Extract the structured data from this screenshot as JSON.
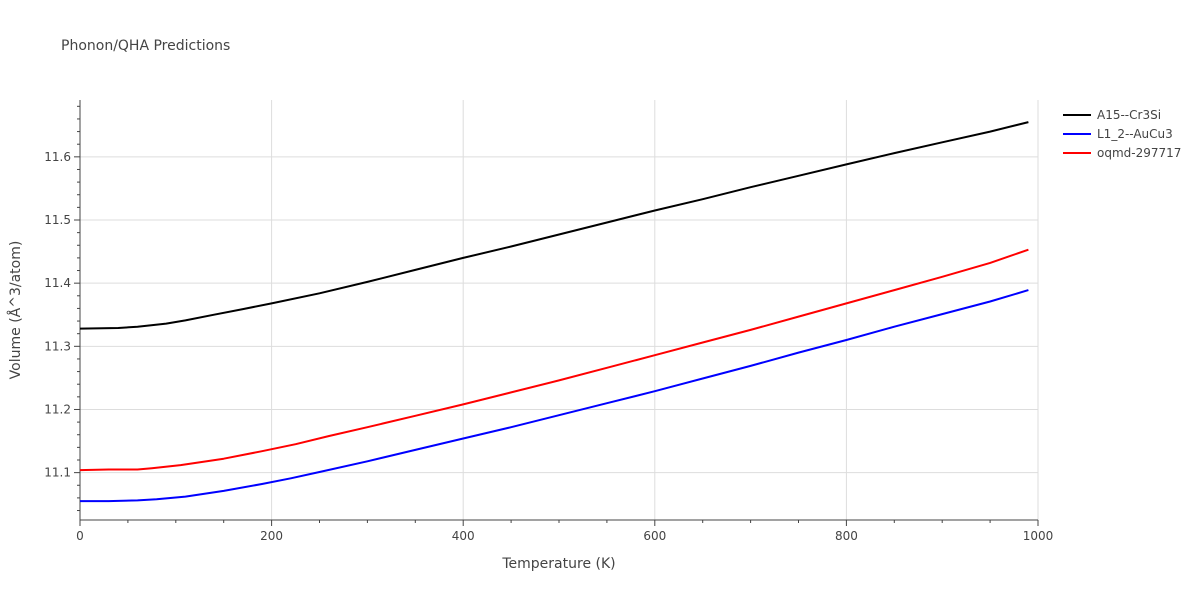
{
  "chart_data": {
    "type": "line",
    "title": "Phonon/QHA Predictions",
    "xlabel": "Temperature (K)",
    "ylabel": "Volume (Å^3/atom)",
    "xlim": [
      0,
      1000
    ],
    "ylim": [
      11.025,
      11.69
    ],
    "x_ticks": [
      0,
      200,
      400,
      600,
      800,
      1000
    ],
    "y_ticks": [
      11.1,
      11.2,
      11.3,
      11.4,
      11.5,
      11.6
    ],
    "x_tick_labels": [
      "0",
      "200",
      "400",
      "600",
      "800",
      "1000"
    ],
    "y_tick_labels": [
      "11.1",
      "11.2",
      "11.3",
      "11.4",
      "11.5",
      "11.6"
    ],
    "grid": true,
    "legend_position": "right",
    "series": [
      {
        "name": "A15--Cr3Si",
        "color": "#000000",
        "x": [
          0,
          40,
          60,
          90,
          110,
          140,
          170,
          200,
          250,
          300,
          350,
          400,
          450,
          500,
          550,
          600,
          650,
          700,
          750,
          800,
          850,
          900,
          950,
          990
        ],
        "y": [
          11.328,
          11.329,
          11.331,
          11.336,
          11.341,
          11.35,
          11.359,
          11.368,
          11.384,
          11.402,
          11.421,
          11.44,
          11.458,
          11.477,
          11.496,
          11.515,
          11.533,
          11.552,
          11.57,
          11.588,
          11.606,
          11.623,
          11.64,
          11.655
        ]
      },
      {
        "name": "L1_2--AuCu3",
        "color": "#0000ff",
        "x": [
          0,
          30,
          60,
          80,
          110,
          150,
          190,
          220,
          250,
          300,
          350,
          400,
          450,
          500,
          550,
          600,
          650,
          700,
          750,
          800,
          850,
          900,
          950,
          990
        ],
        "y": [
          11.055,
          11.055,
          11.056,
          11.058,
          11.062,
          11.071,
          11.082,
          11.091,
          11.101,
          11.118,
          11.136,
          11.154,
          11.172,
          11.191,
          11.21,
          11.229,
          11.249,
          11.269,
          11.29,
          11.31,
          11.331,
          11.351,
          11.371,
          11.389
        ]
      },
      {
        "name": "oqmd-297717",
        "color": "#ff0000",
        "x": [
          0,
          30,
          60,
          75,
          105,
          150,
          190,
          225,
          260,
          300,
          350,
          400,
          450,
          500,
          550,
          600,
          650,
          700,
          750,
          800,
          850,
          900,
          950,
          990
        ],
        "y": [
          11.104,
          11.105,
          11.105,
          11.107,
          11.112,
          11.122,
          11.134,
          11.145,
          11.158,
          11.172,
          11.19,
          11.208,
          11.227,
          11.246,
          11.266,
          11.286,
          11.306,
          11.326,
          11.347,
          11.368,
          11.389,
          11.41,
          11.432,
          11.453
        ]
      }
    ]
  }
}
